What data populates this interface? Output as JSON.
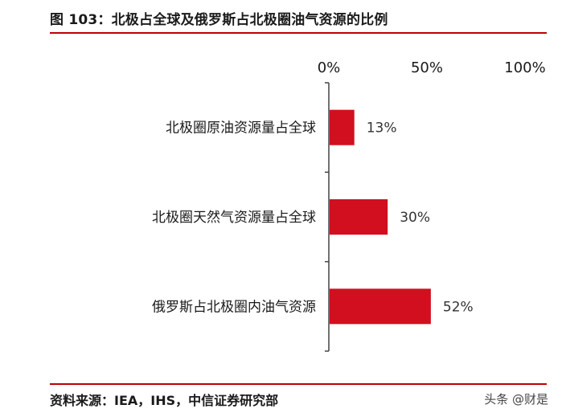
{
  "header": {
    "title": "图 103：北极占全球及俄罗斯占北极圈油气资源的比例"
  },
  "footer": {
    "source": "资料来源：IEA，IHS，中信证券研究部",
    "watermark": "头条 @财是"
  },
  "colors": {
    "bar": "#d10f1f",
    "rule": "#c00000",
    "axis": "#444444"
  },
  "chart_data": {
    "type": "bar",
    "orientation": "horizontal",
    "categories": [
      "北极圈原油资源量占全球",
      "北极圈天然气资源量占全球",
      "俄罗斯占北极圈内油气资源"
    ],
    "values": [
      13,
      30,
      52
    ],
    "value_labels": [
      "13%",
      "30%",
      "52%"
    ],
    "xlim": [
      0,
      100
    ],
    "xticks": [
      0,
      50,
      100
    ],
    "xtick_labels": [
      "0%",
      "50%",
      "100%"
    ],
    "x_axis_position": "top",
    "grid": false,
    "legend": "none"
  }
}
